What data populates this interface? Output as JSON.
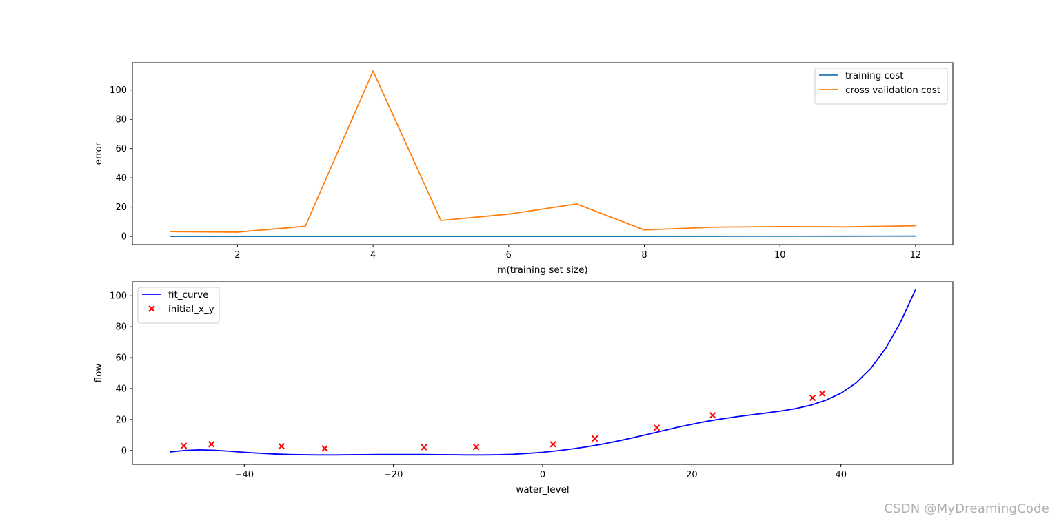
{
  "watermark": "CSDN @MyDreamingCode",
  "chart_data": [
    {
      "type": "line",
      "xlabel": "m(training set size)",
      "ylabel": "error",
      "xlim": [
        0.45,
        12.55
      ],
      "ylim": [
        -5.6,
        118.7
      ],
      "xticks": [
        2,
        4,
        6,
        8,
        10,
        12
      ],
      "yticks": [
        0,
        20,
        40,
        60,
        80,
        100
      ],
      "grid": false,
      "legend_position": "top-right",
      "x": [
        1,
        2,
        3,
        4,
        5,
        6,
        7,
        8,
        9,
        10,
        11,
        12
      ],
      "series": [
        {
          "name": "training cost",
          "color": "#1f77b4",
          "values": [
            0.0,
            0.0,
            0.0,
            0.0,
            0.0,
            0.0,
            0.0,
            0.0,
            0.05,
            0.1,
            0.15,
            0.2
          ]
        },
        {
          "name": "cross validation cost",
          "color": "#ff7f0e",
          "values": [
            3.3,
            2.9,
            6.9,
            113.0,
            10.9,
            15.2,
            22.2,
            4.4,
            6.3,
            6.7,
            6.5,
            7.3
          ]
        }
      ]
    },
    {
      "type": "line",
      "xlabel": "water_level",
      "ylabel": "flow",
      "xlim": [
        -55.0,
        55.0
      ],
      "ylim": [
        -9.0,
        109.0
      ],
      "xticks": [
        -40,
        -20,
        0,
        20,
        40
      ],
      "yticks": [
        0,
        20,
        40,
        60,
        80,
        100
      ],
      "grid": false,
      "legend_position": "top-left",
      "series": [
        {
          "name": "fit_curve",
          "kind": "line",
          "color": "#0000ff",
          "x": [
            -50,
            -48,
            -46,
            -44,
            -42,
            -40,
            -38,
            -36,
            -34,
            -32,
            -30,
            -28,
            -26,
            -24,
            -22,
            -20,
            -18,
            -16,
            -14,
            -12,
            -10,
            -8,
            -6,
            -4,
            -2,
            0,
            2,
            4,
            6,
            8,
            10,
            12,
            14,
            16,
            18,
            20,
            22,
            24,
            26,
            28,
            30,
            32,
            34,
            36,
            38,
            40,
            42,
            44,
            46,
            48,
            50
          ],
          "y": [
            -1.0,
            0.0,
            0.4,
            0.1,
            -0.5,
            -1.2,
            -1.8,
            -2.3,
            -2.6,
            -2.8,
            -2.9,
            -2.9,
            -2.8,
            -2.7,
            -2.6,
            -2.6,
            -2.6,
            -2.6,
            -2.7,
            -2.8,
            -2.9,
            -2.9,
            -2.8,
            -2.5,
            -1.9,
            -1.2,
            -0.2,
            1.0,
            2.4,
            4.1,
            6.0,
            8.1,
            10.3,
            12.6,
            14.9,
            16.9,
            18.8,
            20.4,
            21.8,
            23.0,
            24.2,
            25.5,
            27.1,
            29.3,
            32.5,
            37.0,
            43.5,
            53.0,
            66.0,
            83.0,
            104.0
          ]
        },
        {
          "name": "initial_x_y",
          "kind": "scatter",
          "marker": "x",
          "color": "#ff0000",
          "x": [
            -48.1,
            -44.4,
            -35.0,
            -29.2,
            -15.9,
            -8.9,
            1.4,
            7.0,
            15.3,
            22.8,
            36.2,
            37.5
          ],
          "y": [
            3.0,
            4.0,
            2.7,
            1.3,
            2.1,
            2.2,
            4.0,
            7.7,
            14.7,
            22.7,
            34.0,
            36.8
          ]
        }
      ]
    }
  ]
}
